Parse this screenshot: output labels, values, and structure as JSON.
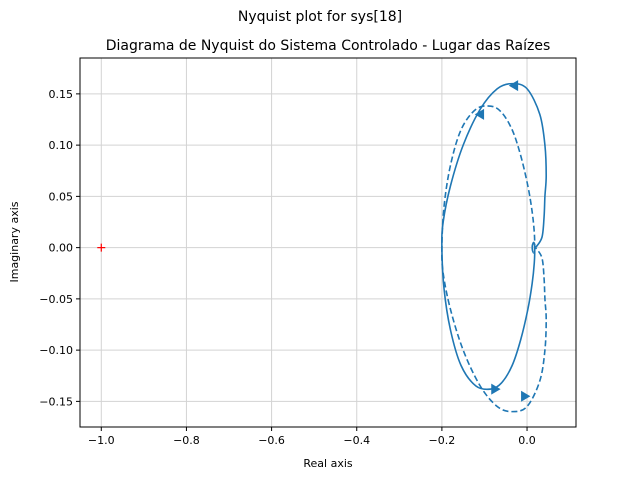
{
  "chart_data": {
    "type": "line",
    "suptitle": "Nyquist plot for sys[18]",
    "title": "Diagrama de Nyquist do Sistema Controlado - Lugar das Raízes",
    "xlabel": "Real axis",
    "ylabel": "Imaginary axis",
    "xlim": [
      -1.05,
      0.115
    ],
    "ylim": [
      -0.175,
      0.185
    ],
    "xticks": [
      -1.0,
      -0.8,
      -0.6,
      -0.4,
      -0.2,
      0.0
    ],
    "yticks": [
      -0.15,
      -0.1,
      -0.05,
      0.0,
      0.05,
      0.1,
      0.15
    ],
    "xtick_labels": [
      "−1.0",
      "−0.8",
      "−0.6",
      "−0.4",
      "−0.2",
      "0.0"
    ],
    "ytick_labels": [
      "−0.15",
      "−0.10",
      "−0.05",
      "0.00",
      "0.05",
      "0.10",
      "0.15"
    ],
    "grid": true,
    "line_color": "#1f77b4",
    "critical_point_color": "#ff0000",
    "critical_point": [
      -1.0,
      0.0
    ],
    "series": [
      {
        "style": "solid",
        "x": [
          0.02,
          0.035,
          0.04,
          0.042,
          0.045,
          0.042,
          0.03,
          0.0,
          -0.035,
          -0.07,
          -0.11,
          -0.15,
          -0.18,
          -0.197,
          -0.2,
          -0.195,
          -0.18,
          -0.155,
          -0.12,
          -0.085,
          -0.06,
          -0.035,
          -0.015,
          0.002,
          0.012,
          0.017,
          0.018,
          0.016,
          0.013,
          0.012
        ],
        "y": [
          0.0,
          0.01,
          0.03,
          0.05,
          0.07,
          0.1,
          0.13,
          0.155,
          0.16,
          0.155,
          0.135,
          0.1,
          0.06,
          0.025,
          0.0,
          -0.04,
          -0.08,
          -0.115,
          -0.135,
          -0.138,
          -0.132,
          -0.115,
          -0.09,
          -0.06,
          -0.035,
          -0.015,
          0.0,
          0.005,
          0.003,
          0.0
        ]
      },
      {
        "style": "dashed",
        "x": [
          0.012,
          0.013,
          0.016,
          0.018,
          0.017,
          0.012,
          0.002,
          -0.015,
          -0.035,
          -0.06,
          -0.085,
          -0.12,
          -0.155,
          -0.18,
          -0.195,
          -0.2,
          -0.197,
          -0.18,
          -0.15,
          -0.11,
          -0.07,
          -0.035,
          0.0,
          0.03,
          0.042,
          0.045,
          0.042,
          0.04,
          0.035,
          0.02
        ],
        "y": [
          0.0,
          -0.003,
          -0.005,
          0.0,
          0.015,
          0.035,
          0.06,
          0.09,
          0.115,
          0.132,
          0.138,
          0.135,
          0.115,
          0.08,
          0.04,
          0.0,
          -0.025,
          -0.06,
          -0.1,
          -0.135,
          -0.155,
          -0.16,
          -0.155,
          -0.13,
          -0.1,
          -0.07,
          -0.05,
          -0.03,
          -0.01,
          0.0
        ]
      }
    ],
    "arrows": [
      {
        "series": "solid",
        "x": -0.03,
        "y": 0.158,
        "direction": "left"
      },
      {
        "series": "solid",
        "x": -0.075,
        "y": -0.138,
        "direction": "right"
      },
      {
        "series": "dashed",
        "x": -0.11,
        "y": 0.13,
        "direction": "left"
      },
      {
        "series": "dashed",
        "x": -0.005,
        "y": -0.145,
        "direction": "right"
      }
    ]
  }
}
